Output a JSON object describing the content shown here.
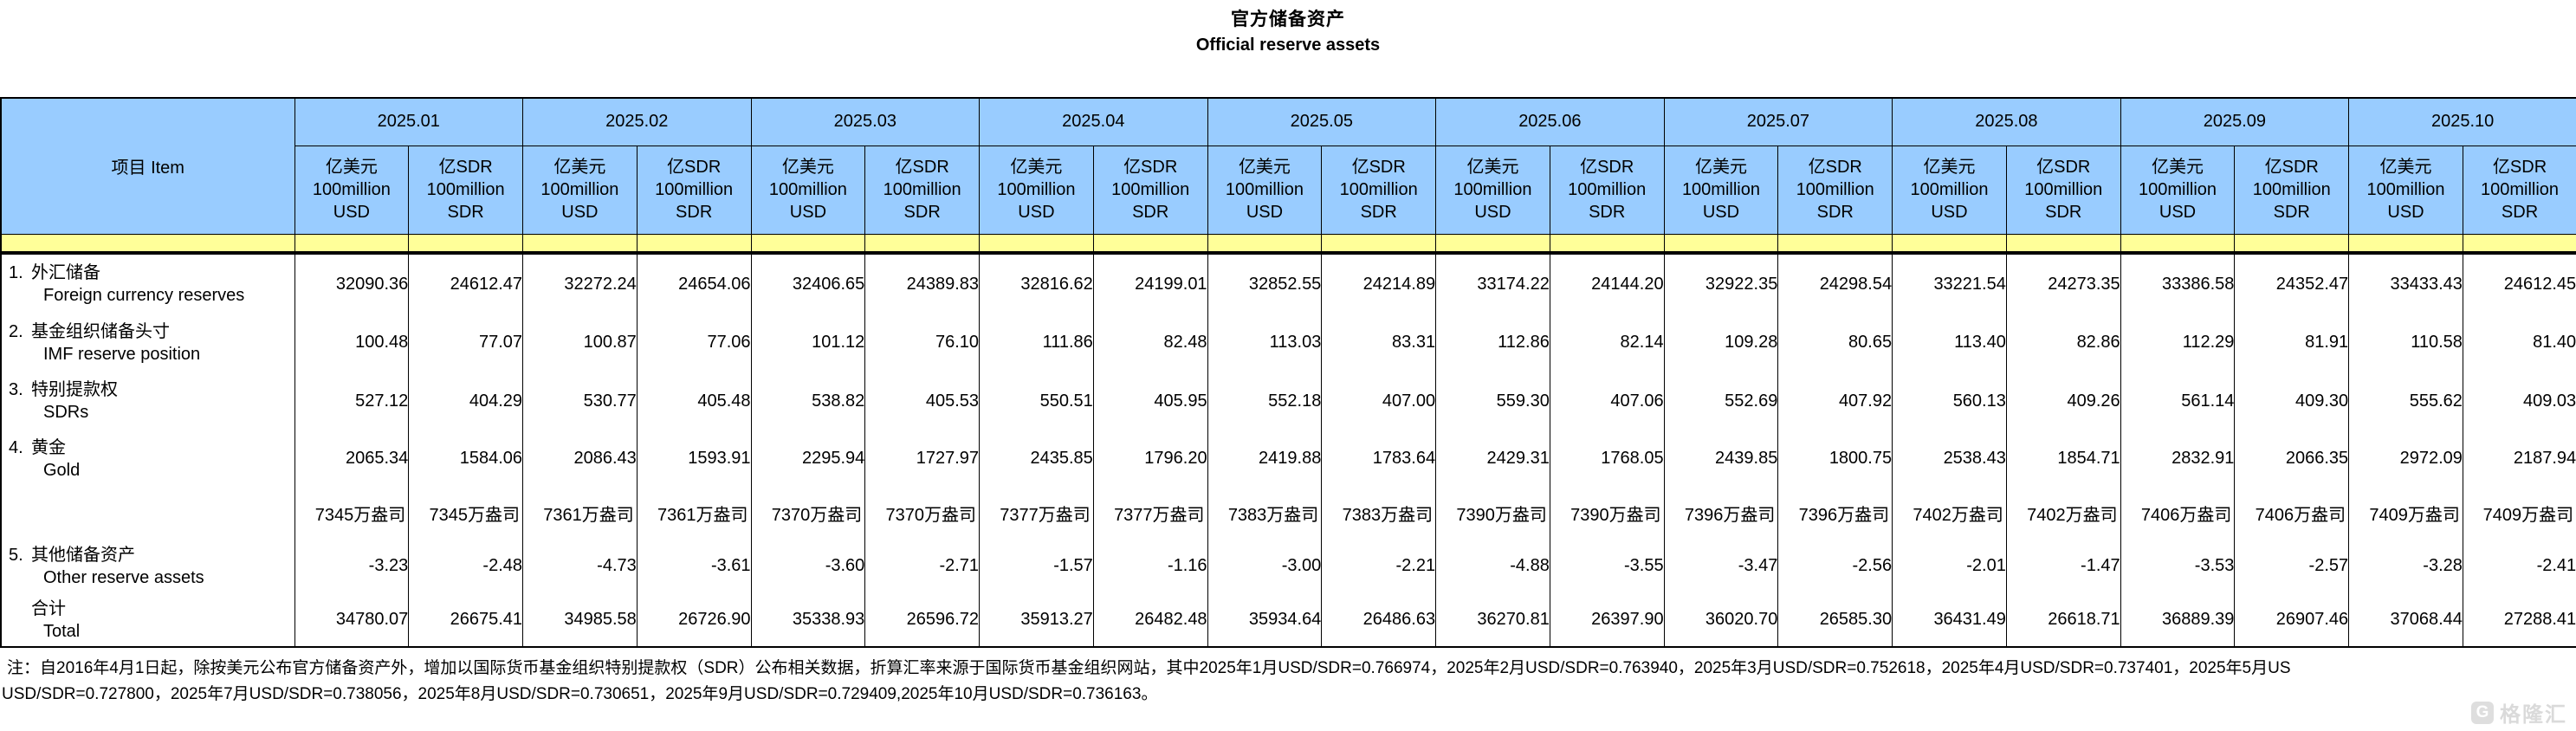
{
  "title": {
    "zh": "官方储备资产",
    "en": "Official reserve assets"
  },
  "colors": {
    "header_blue": "#99CCFF",
    "band_yellow": "#FFFF99",
    "border": "#000000"
  },
  "table": {
    "item_header": "项目  Item",
    "months": [
      "2025.01",
      "2025.02",
      "2025.03",
      "2025.04",
      "2025.05",
      "2025.06",
      "2025.07",
      "2025.08",
      "2025.09",
      "2025.10"
    ],
    "unit_usd": [
      "亿美元",
      "100million",
      "USD"
    ],
    "unit_sdr": [
      "亿SDR",
      "100million",
      "SDR"
    ],
    "rows": [
      {
        "no": "1.",
        "zh": "外汇储备",
        "en": "Foreign currency reserves",
        "values": [
          "32090.36",
          "24612.47",
          "32272.24",
          "24654.06",
          "32406.65",
          "24389.83",
          "32816.62",
          "24199.01",
          "32852.55",
          "24214.89",
          "33174.22",
          "24144.20",
          "32922.35",
          "24298.54",
          "33221.54",
          "24273.35",
          "33386.58",
          "24352.47",
          "33433.43",
          "24612.45"
        ]
      },
      {
        "no": "2.",
        "zh": "基金组织储备头寸",
        "en": "IMF reserve position",
        "values": [
          "100.48",
          "77.07",
          "100.87",
          "77.06",
          "101.12",
          "76.10",
          "111.86",
          "82.48",
          "113.03",
          "83.31",
          "112.86",
          "82.14",
          "109.28",
          "80.65",
          "113.40",
          "82.86",
          "112.29",
          "81.91",
          "110.58",
          "81.40"
        ]
      },
      {
        "no": "3.",
        "zh": "特别提款权",
        "en": "SDRs",
        "values": [
          "527.12",
          "404.29",
          "530.77",
          "405.48",
          "538.82",
          "405.53",
          "550.51",
          "405.95",
          "552.18",
          "407.00",
          "559.30",
          "407.06",
          "552.69",
          "407.92",
          "560.13",
          "409.26",
          "561.14",
          "409.30",
          "555.62",
          "409.03"
        ]
      },
      {
        "no": "4.",
        "zh": "黄金",
        "en": "Gold",
        "values": [
          "2065.34",
          "1584.06",
          "2086.43",
          "1593.91",
          "2295.94",
          "1727.97",
          "2435.85",
          "1796.20",
          "2419.88",
          "1783.64",
          "2429.31",
          "1768.05",
          "2439.85",
          "1800.75",
          "2538.43",
          "1854.71",
          "2832.91",
          "2066.35",
          "2972.09",
          "2187.94"
        ]
      },
      {
        "no": "",
        "zh": "",
        "en": "",
        "values": [
          "7345万盎司",
          "7345万盎司",
          "7361万盎司",
          "7361万盎司",
          "7370万盎司",
          "7370万盎司",
          "7377万盎司",
          "7377万盎司",
          "7383万盎司",
          "7383万盎司",
          "7390万盎司",
          "7390万盎司",
          "7396万盎司",
          "7396万盎司",
          "7402万盎司",
          "7402万盎司",
          "7406万盎司",
          "7406万盎司",
          "7409万盎司",
          "7409万盎司"
        ]
      },
      {
        "no": "5.",
        "zh": "其他储备资产",
        "en": "Other reserve assets",
        "values": [
          "-3.23",
          "-2.48",
          "-4.73",
          "-3.61",
          "-3.60",
          "-2.71",
          "-1.57",
          "-1.16",
          "-3.00",
          "-2.21",
          "-4.88",
          "-3.55",
          "-3.47",
          "-2.56",
          "-2.01",
          "-1.47",
          "-3.53",
          "-2.57",
          "-3.28",
          "-2.41"
        ]
      },
      {
        "no": "",
        "zh": "合计",
        "en": "Total",
        "values": [
          "34780.07",
          "26675.41",
          "34985.58",
          "26726.90",
          "35338.93",
          "26596.72",
          "35913.27",
          "26482.48",
          "35934.64",
          "26486.63",
          "36270.81",
          "26397.90",
          "36020.70",
          "26585.30",
          "36431.49",
          "26618.71",
          "36889.39",
          "26907.46",
          "37068.44",
          "27288.41"
        ]
      }
    ]
  },
  "footnote": {
    "line1": "注：自2016年4月1日起，除按美元公布官方储备资产外，增加以国际货币基金组织特别提款权（SDR）公布相关数据，折算汇率来源于国际货币基金组织网站，其中2025年1月USD/SDR=0.766974，2025年2月USD/SDR=0.763940，2025年3月USD/SDR=0.752618，2025年4月USD/SDR=0.737401，2025年5月US",
    "line2": "USD/SDR=0.727800，2025年7月USD/SDR=0.738056，2025年8月USD/SDR=0.730651，2025年9月USD/SDR=0.729409,2025年10月USD/SDR=0.736163。"
  },
  "watermark": {
    "logo_letter": "G",
    "text": "格隆汇"
  }
}
